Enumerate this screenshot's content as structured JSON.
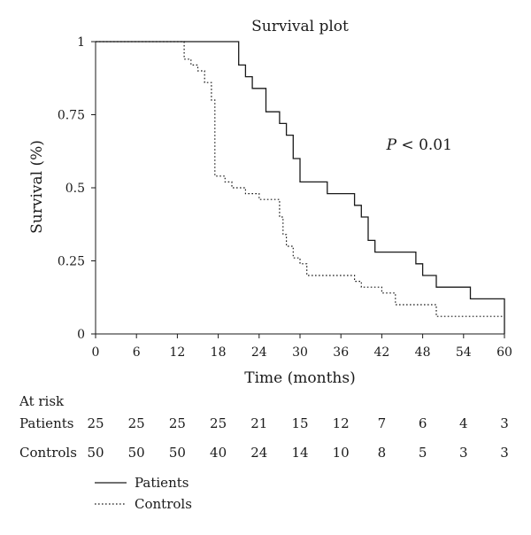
{
  "chart_data": {
    "type": "line",
    "step": true,
    "title": "Survival plot",
    "xlabel": "Time (months)",
    "ylabel": "Survival (%)",
    "xlim": [
      0,
      60
    ],
    "ylim": [
      0,
      1
    ],
    "x_ticks": [
      0,
      6,
      12,
      18,
      24,
      30,
      36,
      42,
      48,
      54,
      60
    ],
    "y_ticks": [
      {
        "value": 0,
        "label": "0"
      },
      {
        "value": 0.25,
        "label": "0.25"
      },
      {
        "value": 0.5,
        "label": "0.5"
      },
      {
        "value": 0.75,
        "label": "0.75"
      },
      {
        "value": 1,
        "label": "1"
      }
    ],
    "annotation": {
      "text": "P < 0.01",
      "x": 47.5,
      "y": 0.63
    },
    "series": [
      {
        "name": "Patients",
        "style": "solid",
        "points": [
          [
            0,
            1
          ],
          [
            21,
            1
          ],
          [
            21,
            0.92
          ],
          [
            22,
            0.92
          ],
          [
            22,
            0.88
          ],
          [
            23,
            0.88
          ],
          [
            23,
            0.84
          ],
          [
            25,
            0.84
          ],
          [
            25,
            0.76
          ],
          [
            27,
            0.76
          ],
          [
            27,
            0.72
          ],
          [
            28,
            0.72
          ],
          [
            28,
            0.68
          ],
          [
            29,
            0.68
          ],
          [
            29,
            0.6
          ],
          [
            30,
            0.6
          ],
          [
            30,
            0.52
          ],
          [
            34,
            0.52
          ],
          [
            34,
            0.48
          ],
          [
            38,
            0.48
          ],
          [
            38,
            0.44
          ],
          [
            39,
            0.44
          ],
          [
            39,
            0.4
          ],
          [
            40,
            0.4
          ],
          [
            40,
            0.32
          ],
          [
            41,
            0.32
          ],
          [
            41,
            0.28
          ],
          [
            47,
            0.28
          ],
          [
            47,
            0.24
          ],
          [
            48,
            0.24
          ],
          [
            48,
            0.2
          ],
          [
            50,
            0.2
          ],
          [
            50,
            0.16
          ],
          [
            55,
            0.16
          ],
          [
            55,
            0.12
          ],
          [
            60,
            0.12
          ],
          [
            60,
            0
          ]
        ]
      },
      {
        "name": "Controls",
        "style": "dotted",
        "points": [
          [
            0,
            1
          ],
          [
            13,
            1
          ],
          [
            13,
            0.94
          ],
          [
            14,
            0.94
          ],
          [
            14,
            0.92
          ],
          [
            15,
            0.92
          ],
          [
            15,
            0.9
          ],
          [
            16,
            0.9
          ],
          [
            16,
            0.86
          ],
          [
            17,
            0.86
          ],
          [
            17,
            0.8
          ],
          [
            17.5,
            0.8
          ],
          [
            17.5,
            0.54
          ],
          [
            19,
            0.54
          ],
          [
            19,
            0.52
          ],
          [
            20,
            0.52
          ],
          [
            20,
            0.5
          ],
          [
            22,
            0.5
          ],
          [
            22,
            0.48
          ],
          [
            24,
            0.48
          ],
          [
            24,
            0.46
          ],
          [
            27,
            0.46
          ],
          [
            27,
            0.4
          ],
          [
            27.5,
            0.4
          ],
          [
            27.5,
            0.34
          ],
          [
            28,
            0.34
          ],
          [
            28,
            0.3
          ],
          [
            29,
            0.3
          ],
          [
            29,
            0.26
          ],
          [
            30,
            0.26
          ],
          [
            30,
            0.24
          ],
          [
            31,
            0.24
          ],
          [
            31,
            0.2
          ],
          [
            38,
            0.2
          ],
          [
            38,
            0.18
          ],
          [
            39,
            0.18
          ],
          [
            39,
            0.16
          ],
          [
            42,
            0.16
          ],
          [
            42,
            0.14
          ],
          [
            44,
            0.14
          ],
          [
            44,
            0.1
          ],
          [
            50,
            0.1
          ],
          [
            50,
            0.06
          ],
          [
            60,
            0.06
          ]
        ]
      }
    ],
    "at_risk": {
      "heading": "At risk",
      "rows": [
        {
          "label": "Patients",
          "values": [
            25,
            25,
            25,
            25,
            21,
            15,
            12,
            7,
            6,
            4,
            3
          ]
        },
        {
          "label": "Controls",
          "values": [
            50,
            50,
            50,
            40,
            24,
            14,
            10,
            8,
            5,
            3,
            3
          ]
        }
      ]
    },
    "legend": {
      "position": "bottom-left",
      "items": [
        "Patients",
        "Controls"
      ]
    }
  }
}
